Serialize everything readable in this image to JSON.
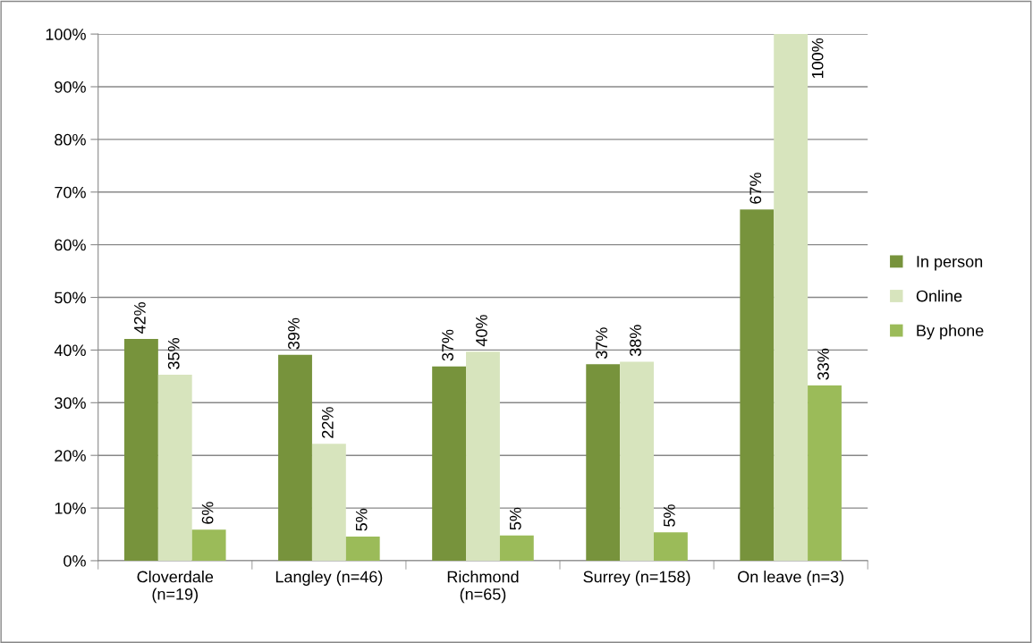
{
  "chart_data": {
    "type": "bar",
    "categories": [
      "Cloverdale\n(n=19)",
      "Langley (n=46)",
      "Richmond\n(n=65)",
      "Surrey (n=158)",
      "On leave (n=3)"
    ],
    "series": [
      {
        "name": "In person",
        "color": "#77933c",
        "values": [
          42.1,
          39.1,
          36.9,
          37.3,
          66.7
        ],
        "value_labels": [
          "42%",
          "39%",
          "37%",
          "37%",
          "67%"
        ]
      },
      {
        "name": "Online",
        "color": "#d7e4bd",
        "values": [
          35.3,
          22.2,
          39.7,
          37.8,
          100
        ],
        "value_labels": [
          "35%",
          "22%",
          "40%",
          "38%",
          "100%"
        ]
      },
      {
        "name": "By phone",
        "color": "#9bbb59",
        "values": [
          5.9,
          4.6,
          4.8,
          5.4,
          33.3
        ],
        "value_labels": [
          "6%",
          "5%",
          "5%",
          "5%",
          "33%"
        ]
      }
    ],
    "ylim": [
      0,
      100
    ],
    "yticks": [
      {
        "value": 0,
        "label": "0%"
      },
      {
        "value": 10,
        "label": "10%"
      },
      {
        "value": 20,
        "label": "20%"
      },
      {
        "value": 30,
        "label": "30%"
      },
      {
        "value": 40,
        "label": "40%"
      },
      {
        "value": 50,
        "label": "50%"
      },
      {
        "value": 60,
        "label": "60%"
      },
      {
        "value": 70,
        "label": "70%"
      },
      {
        "value": 80,
        "label": "80%"
      },
      {
        "value": 90,
        "label": "90%"
      },
      {
        "value": 100,
        "label": "100%"
      }
    ],
    "grid": "y",
    "legend": "right"
  }
}
